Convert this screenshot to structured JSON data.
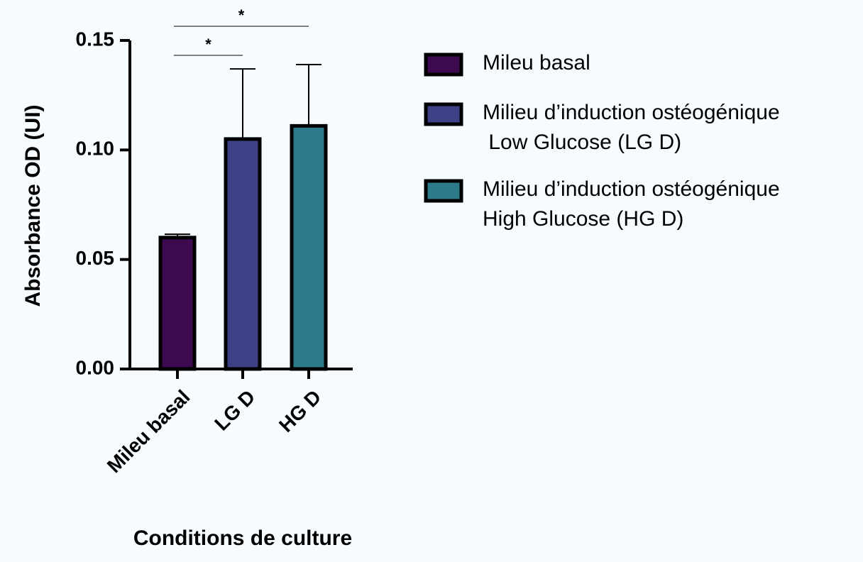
{
  "chart_data": {
    "type": "bar",
    "ylabel": "Absorbance OD (UI)",
    "xlabel": "Conditions de culture",
    "categories": [
      "Mileu basal",
      "LG D",
      "HG D"
    ],
    "values": [
      0.06,
      0.105,
      0.111
    ],
    "errors": [
      0.0015,
      0.032,
      0.028
    ],
    "colors": [
      "#3d0a50",
      "#3d4085",
      "#2c7a8a"
    ],
    "ylim": [
      0,
      0.15
    ],
    "yticks": [
      {
        "value": 0,
        "label": "0.00"
      },
      {
        "value": 0.05,
        "label": "0.05"
      },
      {
        "value": 0.1,
        "label": "0.10"
      },
      {
        "value": 0.15,
        "label": "0.15"
      }
    ],
    "legend": [
      {
        "lines": [
          "Mileu basal"
        ]
      },
      {
        "lines": [
          "Milieu d’induction ostéogénique",
          " Low Glucose (LG D)"
        ]
      },
      {
        "lines": [
          "Milieu d’induction ostéogénique",
          "High Glucose (HG D)"
        ]
      }
    ],
    "annotations": [
      {
        "text": "*",
        "from": "Mileu basal",
        "to": "LG D"
      },
      {
        "text": "*",
        "from": "Mileu basal",
        "to": "HG D"
      }
    ]
  }
}
